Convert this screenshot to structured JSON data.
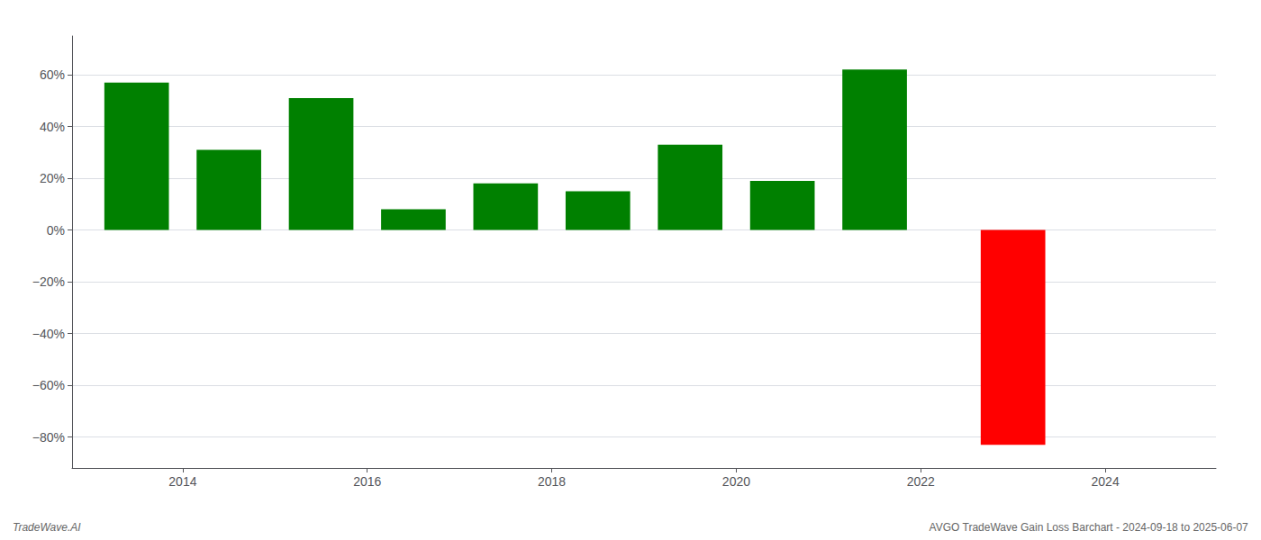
{
  "chart_data": {
    "type": "bar",
    "x": [
      2013.5,
      2014.5,
      2015.5,
      2016.5,
      2017.5,
      2018.5,
      2019.5,
      2020.5,
      2021.5,
      2023.0
    ],
    "values": [
      0.57,
      0.31,
      0.51,
      0.08,
      0.18,
      0.15,
      0.33,
      0.19,
      0.62,
      -0.83
    ],
    "colors": [
      "#008000",
      "#008000",
      "#008000",
      "#008000",
      "#008000",
      "#008000",
      "#008000",
      "#008000",
      "#008000",
      "#ff0000"
    ],
    "xlim": [
      2012.8,
      2025.2
    ],
    "xticks": [
      2014,
      2016,
      2018,
      2020,
      2022,
      2024
    ],
    "ylim": [
      -0.92,
      0.75
    ],
    "yticks": [
      {
        "value": -0.8,
        "label": "−80%"
      },
      {
        "value": -0.6,
        "label": "−60%"
      },
      {
        "value": -0.4,
        "label": "−40%"
      },
      {
        "value": -0.2,
        "label": "−20%"
      },
      {
        "value": 0.0,
        "label": "0%"
      },
      {
        "value": 0.2,
        "label": "20%"
      },
      {
        "value": 0.4,
        "label": "40%"
      },
      {
        "value": 0.6,
        "label": "60%"
      }
    ],
    "grid": true,
    "annotations": [
      "TradeWave.AI",
      "AVGO TradeWave Gain Loss Barchart - 2024-09-18 to 2025-06-07"
    ]
  }
}
